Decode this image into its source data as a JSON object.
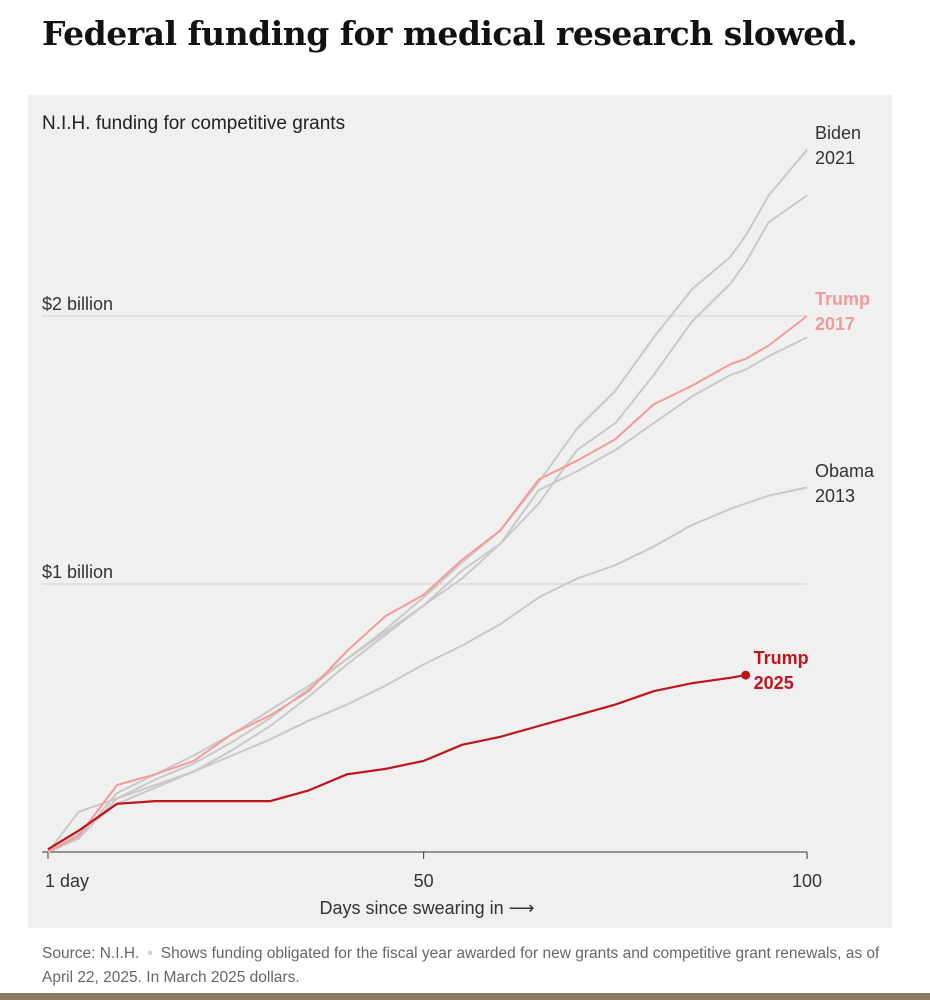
{
  "title": "Federal funding for medical research slowed.",
  "chart_data": {
    "type": "line",
    "title": "N.I.H. funding for competitive grants",
    "x_label": "Days since swearing in ⟶",
    "x": [
      1,
      5,
      10,
      15,
      20,
      25,
      30,
      35,
      40,
      45,
      50,
      55,
      60,
      65,
      70,
      75,
      80,
      85,
      90,
      92,
      95,
      100
    ],
    "xlim": [
      1,
      100
    ],
    "xticks": [
      {
        "value": 1,
        "label": "1 day"
      },
      50,
      100
    ],
    "ylim": [
      0,
      2.65
    ],
    "yticks": [
      {
        "value": 1,
        "label": "$1 billion"
      },
      {
        "value": 2,
        "label": "$2 billion"
      }
    ],
    "grid": true,
    "series": [
      {
        "color": "#c9c9c9",
        "values": [
          0,
          0.05,
          0.22,
          0.29,
          0.36,
          0.44,
          0.53,
          0.62,
          0.72,
          0.82,
          0.92,
          1.05,
          1.15,
          1.3,
          1.5,
          1.6,
          1.78,
          1.98,
          2.12,
          2.2,
          2.35,
          2.45
        ]
      },
      {
        "color": "#c9c9c9",
        "values": [
          0,
          0.05,
          0.2,
          0.25,
          0.3,
          0.38,
          0.47,
          0.58,
          0.7,
          0.81,
          0.92,
          1.02,
          1.15,
          1.35,
          1.42,
          1.5,
          1.6,
          1.7,
          1.78,
          1.8,
          1.85,
          1.92
        ]
      },
      {
        "name": "Obama 2013",
        "color": "#c9c9c9",
        "values": [
          0,
          0.07,
          0.18,
          0.24,
          0.3,
          0.36,
          0.42,
          0.49,
          0.55,
          0.62,
          0.7,
          0.77,
          0.85,
          0.95,
          1.02,
          1.07,
          1.14,
          1.22,
          1.28,
          1.3,
          1.33,
          1.36
        ]
      },
      {
        "name": "Biden 2021",
        "color": "#c9c9c9",
        "values": [
          0,
          0.15,
          0.2,
          0.27,
          0.33,
          0.41,
          0.5,
          0.61,
          0.72,
          0.83,
          0.95,
          1.08,
          1.2,
          1.38,
          1.58,
          1.72,
          1.92,
          2.1,
          2.22,
          2.3,
          2.45,
          2.62
        ]
      },
      {
        "name": "Trump 2017",
        "color": "#f59a9a",
        "values": [
          0,
          0.06,
          0.25,
          0.29,
          0.34,
          0.44,
          0.51,
          0.6,
          0.75,
          0.88,
          0.96,
          1.09,
          1.2,
          1.39,
          1.46,
          1.54,
          1.67,
          1.74,
          1.82,
          1.84,
          1.89,
          2.0
        ]
      },
      {
        "name": "Trump 2025",
        "color": "#c0141c",
        "values": [
          0.01,
          0.08,
          0.18,
          0.19,
          0.19,
          0.19,
          0.19,
          0.23,
          0.29,
          0.31,
          0.34,
          0.4,
          0.43,
          0.47,
          0.51,
          0.55,
          0.6,
          0.63,
          0.65,
          0.66,
          null,
          null
        ]
      }
    ]
  },
  "footer": {
    "source": "Source: N.I.H.",
    "note": "Shows funding obligated for the fiscal year awarded for new grants and competitive grant renewals, as of April 22, 2025. In March 2025 dollars."
  }
}
